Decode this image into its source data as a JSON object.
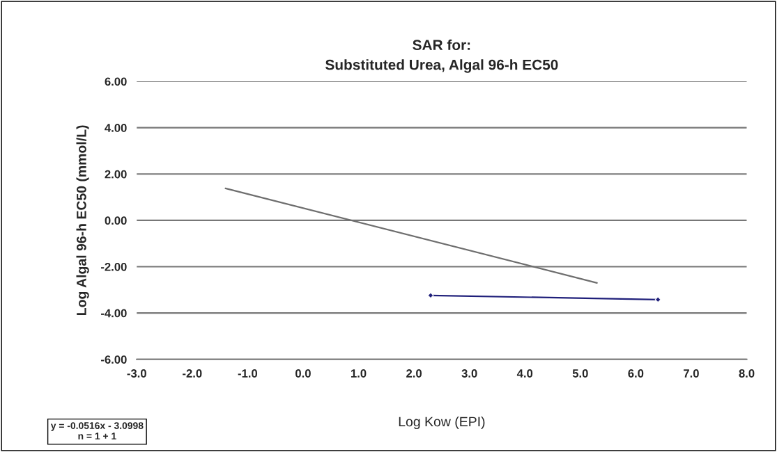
{
  "chart_data": {
    "type": "line",
    "title": "SAR for:\nSubstituted Urea, Algal 96-h EC50",
    "xlabel": "Log Kow (EPI)",
    "ylabel": "Log Algal 96-h EC50 (mmol/L)",
    "xlim": [
      -3,
      8
    ],
    "xticks": [
      {
        "value": -3,
        "label": "-3.0"
      },
      {
        "value": -2,
        "label": "-2.0"
      },
      {
        "value": -1,
        "label": "-1.0"
      },
      {
        "value": 0,
        "label": "0.0"
      },
      {
        "value": 1,
        "label": "1.0"
      },
      {
        "value": 2,
        "label": "2.0"
      },
      {
        "value": 3,
        "label": "3.0"
      },
      {
        "value": 4,
        "label": "4.0"
      },
      {
        "value": 5,
        "label": "5.0"
      },
      {
        "value": 6,
        "label": "6.0"
      },
      {
        "value": 7,
        "label": "7.0"
      },
      {
        "value": 8,
        "label": "8.0"
      }
    ],
    "ylim": [
      -6,
      6
    ],
    "yticks": [
      {
        "value": -6,
        "label": "-6.00"
      },
      {
        "value": -4,
        "label": "-4.00"
      },
      {
        "value": -2,
        "label": "-2.00"
      },
      {
        "value": 0,
        "label": "0.00"
      },
      {
        "value": 2,
        "label": "2.00"
      },
      {
        "value": 4,
        "label": "4.00"
      },
      {
        "value": 6,
        "label": "6.00"
      }
    ],
    "grid": "y",
    "series": [
      {
        "color": "#6e6e6e",
        "x": [
          -1.4,
          5.3
        ],
        "values": [
          1.38,
          -2.7
        ],
        "marker": "none"
      },
      {
        "color": "#1f1f7a",
        "x": [
          2.3,
          6.4
        ],
        "values": [
          -3.24,
          -3.42
        ],
        "marker": "diamond"
      }
    ],
    "annotations": [
      "y = -0.0516x - 3.0998\nn = 1 + 1"
    ]
  }
}
